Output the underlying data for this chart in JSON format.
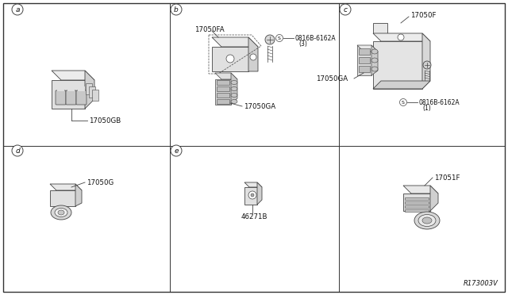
{
  "background_color": "#ffffff",
  "border_color": "#333333",
  "line_color": "#444444",
  "text_color": "#111111",
  "part_labels": {
    "A_part": "17050GB",
    "B_part1": "17050FA",
    "B_part2": "17050GA",
    "B_screw": "S 0816B-6162A\n   (3)",
    "C_part1": "17050F",
    "C_part2": "17050GA",
    "C_screw": "S 0816B-6162A\n   (1)",
    "D_part": "17050G",
    "E_part": "46271B",
    "F_part1": "17051F"
  },
  "footer": "R173003V"
}
